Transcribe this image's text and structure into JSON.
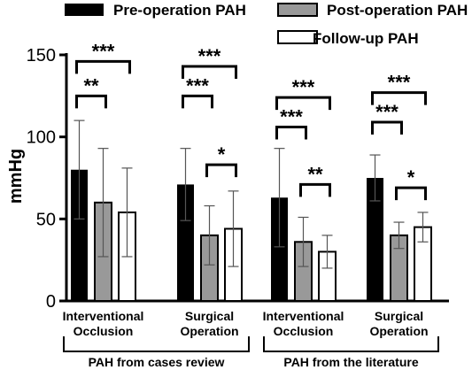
{
  "chart_data": {
    "type": "bar",
    "xlabel": "",
    "ylabel": "mmHg",
    "ylim": [
      0,
      150
    ],
    "yticks": [
      0,
      50,
      100,
      150
    ],
    "grid": false,
    "legend_position": "top-right",
    "series": [
      {
        "name": "Pre-operation PAH",
        "color": "#000000"
      },
      {
        "name": "Post-operation PAH",
        "color": "#999999"
      },
      {
        "name": "Follow-up PAH",
        "color": "#ffffff"
      }
    ],
    "categories": [
      {
        "label": "Interventional Occlusion",
        "values": [
          80,
          60,
          54
        ],
        "errors": [
          30,
          33,
          27
        ]
      },
      {
        "label": "Surgical Operation",
        "values": [
          71,
          40,
          44
        ],
        "errors": [
          22,
          18,
          23
        ]
      },
      {
        "label": "Interventional Occlusion",
        "values": [
          63,
          36,
          30
        ],
        "errors": [
          30,
          15,
          10
        ]
      },
      {
        "label": "Surgical Operation",
        "values": [
          75,
          40,
          45
        ],
        "errors": [
          14,
          8,
          9
        ]
      }
    ],
    "groups": [
      {
        "label": "PAH from cases review",
        "categories": [
          0,
          1
        ]
      },
      {
        "label": "PAH from the literature",
        "categories": [
          2,
          3
        ]
      }
    ],
    "significance": [
      {
        "category": 0,
        "from": 0,
        "to": 1,
        "text": "**",
        "y": 125
      },
      {
        "category": 0,
        "from": 0,
        "to": 2,
        "text": "***",
        "y": 146
      },
      {
        "category": 1,
        "from": 1,
        "to": 2,
        "text": "*",
        "y": 83
      },
      {
        "category": 1,
        "from": 0,
        "to": 1,
        "text": "***",
        "y": 125
      },
      {
        "category": 1,
        "from": 0,
        "to": 2,
        "text": "***",
        "y": 143
      },
      {
        "category": 2,
        "from": 1,
        "to": 2,
        "text": "**",
        "y": 71
      },
      {
        "category": 2,
        "from": 0,
        "to": 1,
        "text": "***",
        "y": 106
      },
      {
        "category": 2,
        "from": 0,
        "to": 2,
        "text": "***",
        "y": 124
      },
      {
        "category": 3,
        "from": 1,
        "to": 2,
        "text": "*",
        "y": 69
      },
      {
        "category": 3,
        "from": 0,
        "to": 1,
        "text": "***",
        "y": 109
      },
      {
        "category": 3,
        "from": 0,
        "to": 2,
        "text": "***",
        "y": 127
      }
    ]
  }
}
